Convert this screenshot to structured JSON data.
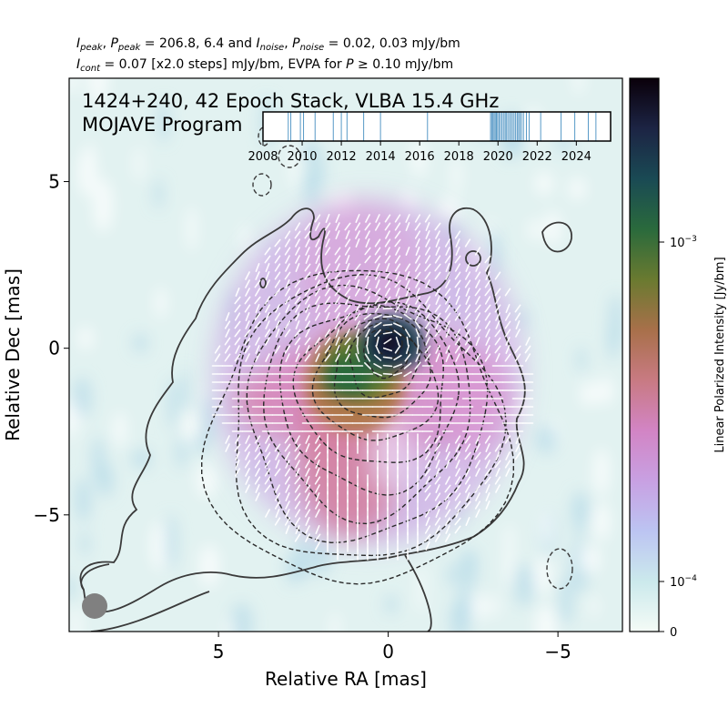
{
  "header": {
    "line1": {
      "ipeak_sym": "I",
      "ipeak_sub": "peak",
      "ppeak_sym": "P",
      "ppeak_sub": "peak",
      "peak_values": " = 206.8, 6.4 and ",
      "inoise_sym": "I",
      "inoise_sub": "noise",
      "pnoise_sym": "P",
      "pnoise_sub": "noise",
      "noise_values": " = 0.02, 0.03 mJy/bm",
      "sep": ", "
    },
    "line2": {
      "icont_sym": "I",
      "icont_sub": "cont",
      "cont_text": " = 0.07 [x2.0 steps] mJy/bm, EVPA for ",
      "p_sym": "P",
      "p_text": " ≥ 0.10 mJy/bm"
    }
  },
  "chart_data": {
    "type": "heatmap",
    "title_line1": "1424+240, 42 Epoch Stack, VLBA 15.4 GHz",
    "title_line2": "MOJAVE Program",
    "xlabel": "Relative RA [mas]",
    "ylabel": "Relative Dec [mas]",
    "xlim": [
      9.4,
      -6.9
    ],
    "ylim": [
      -8.5,
      8.1
    ],
    "xticks": [
      {
        "v": 5,
        "label": "5"
      },
      {
        "v": 0,
        "label": "0"
      },
      {
        "v": -5,
        "label": "−5"
      }
    ],
    "yticks": [
      {
        "v": 5,
        "label": "5"
      },
      {
        "v": 0,
        "label": "0"
      },
      {
        "v": -5,
        "label": "−5"
      }
    ],
    "peak_position": [
      0,
      0
    ],
    "contours": {
      "base_mJy_per_bm": 0.07,
      "step_factor": 2.0,
      "color": "#333333"
    },
    "evpa_threshold_mJy_per_bm": 0.1,
    "evpa_color": "#ffffff",
    "beam_color": "#808080",
    "colorbar": {
      "label": "Linear Polarized Intensity [Jy/bm]",
      "scale": "symlog",
      "ticks": [
        {
          "v": 0,
          "label": "0"
        },
        {
          "v": 0.0001,
          "label_base": "10",
          "label_exp": "−4"
        },
        {
          "v": 0.001,
          "label_base": "10",
          "label_exp": "−3"
        }
      ],
      "colors": [
        "#f4fbf6",
        "#cbe9ec",
        "#bcc4f2",
        "#c8a0e2",
        "#d284c4",
        "#c87a82",
        "#a8704a",
        "#6a7a30",
        "#2a6a3c",
        "#1a4a54",
        "#1c2444",
        "#0a000a"
      ]
    },
    "timeline": {
      "epochs": [
        2009.29,
        2009.42,
        2009.91,
        2010.07,
        2010.66,
        2011.59,
        2012.0,
        2012.29,
        2013.14,
        2014.0,
        2016.4,
        2019.62,
        2019.68,
        2019.74,
        2019.8,
        2019.86,
        2019.92,
        2019.98,
        2020.05,
        2020.12,
        2020.2,
        2020.28,
        2020.36,
        2020.42,
        2020.5,
        2020.58,
        2020.66,
        2020.74,
        2020.82,
        2020.9,
        2020.98,
        2021.05,
        2021.12,
        2021.2,
        2021.3,
        2021.45,
        2021.59,
        2022.18,
        2023.22,
        2023.92,
        2024.61,
        2025.0
      ],
      "xlim": [
        2008,
        2025.75
      ],
      "ticks": [
        "2008",
        "2010",
        "2012",
        "2014",
        "2016",
        "2018",
        "2020",
        "2022",
        "2024"
      ],
      "line_color": "#1f77b4"
    }
  }
}
